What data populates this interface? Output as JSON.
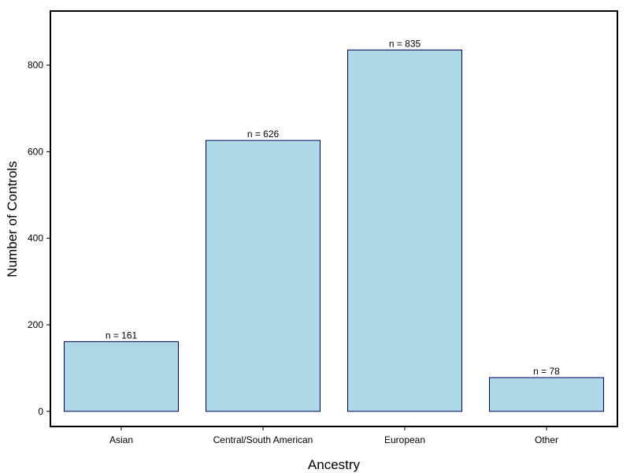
{
  "chart_data": {
    "type": "bar",
    "categories": [
      "Asian",
      "Central/South American",
      "European",
      "Other"
    ],
    "values": [
      161,
      626,
      835,
      78
    ],
    "data_labels": [
      "n =  161",
      "n =  626",
      "n =  835",
      "n =  78"
    ],
    "xlabel": "Ancestry",
    "ylabel": "Number of Controls",
    "ylim": [
      -35,
      925
    ],
    "yticks": [
      0,
      200,
      400,
      600,
      800
    ],
    "grid": false,
    "legend": "none",
    "colors": {
      "bar_fill": "#add8e6",
      "bar_stroke": "#00005a",
      "frame": "#000000"
    }
  }
}
